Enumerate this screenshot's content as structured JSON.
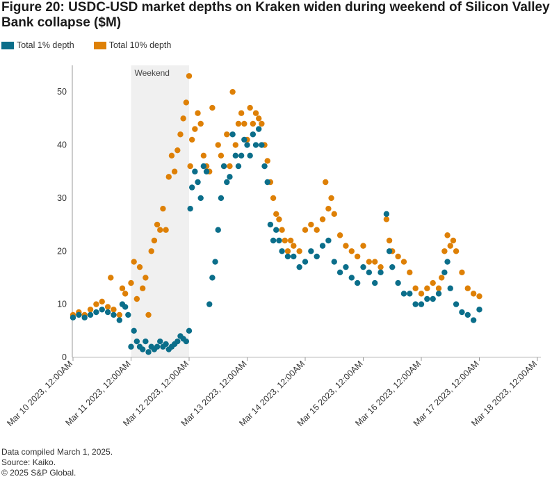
{
  "colors": {
    "series_1pct": "#0b6e8a",
    "series_10pct": "#de8006",
    "band": "#f0f0f0"
  },
  "chart_data": {
    "type": "scatter",
    "title": "Figure 20: USDC-USD market depths on Kraken widen during weekend of Silicon Valley Bank collapse ($M)",
    "xlabel": "",
    "ylabel": "",
    "ylim": [
      0,
      55
    ],
    "yticks": [
      0,
      10,
      20,
      30,
      40,
      50
    ],
    "xticks": [
      "Mar 10 2023, 12:00AM",
      "Mar 11 2023, 12:00AM",
      "Mar 12 2023, 12:00AM",
      "Mar 13 2023, 12:00AM",
      "Mar 14 2023, 12:00AM",
      "Mar 15 2023, 12:00AM",
      "Mar 16 2023, 12:00AM",
      "Mar 17 2023, 12:00AM",
      "Mar 18 2023, 12:00AM"
    ],
    "x_units": "days since Mar 10 2023, 12:00AM",
    "xlim": [
      -0.1,
      8.0
    ],
    "shaded_region": {
      "label": "Weekend",
      "x_start": 1.0,
      "x_end": 2.0
    },
    "legend": [
      "Total 1% depth",
      "Total 10% depth"
    ],
    "legend_position": "top-left",
    "series": [
      {
        "name": "Total 10% depth",
        "points": [
          [
            0.0,
            8
          ],
          [
            0.1,
            8.5
          ],
          [
            0.2,
            8
          ],
          [
            0.3,
            9
          ],
          [
            0.4,
            10
          ],
          [
            0.5,
            10.5
          ],
          [
            0.6,
            9.5
          ],
          [
            0.65,
            15
          ],
          [
            0.7,
            9
          ],
          [
            0.8,
            8
          ],
          [
            0.85,
            13
          ],
          [
            0.9,
            12
          ],
          [
            1.0,
            14
          ],
          [
            1.05,
            18
          ],
          [
            1.1,
            11
          ],
          [
            1.15,
            17
          ],
          [
            1.2,
            13
          ],
          [
            1.25,
            15
          ],
          [
            1.3,
            8
          ],
          [
            1.35,
            20
          ],
          [
            1.4,
            22
          ],
          [
            1.45,
            25
          ],
          [
            1.5,
            24
          ],
          [
            1.55,
            28
          ],
          [
            1.6,
            24
          ],
          [
            1.65,
            34
          ],
          [
            1.7,
            38
          ],
          [
            1.75,
            35
          ],
          [
            1.8,
            39
          ],
          [
            1.85,
            42
          ],
          [
            1.9,
            45
          ],
          [
            1.95,
            48
          ],
          [
            2.0,
            53
          ],
          [
            2.02,
            36
          ],
          [
            2.05,
            41
          ],
          [
            2.1,
            43
          ],
          [
            2.15,
            46
          ],
          [
            2.2,
            44
          ],
          [
            2.25,
            38
          ],
          [
            2.3,
            36
          ],
          [
            2.35,
            35
          ],
          [
            2.4,
            47
          ],
          [
            2.5,
            40
          ],
          [
            2.55,
            38
          ],
          [
            2.6,
            36
          ],
          [
            2.65,
            42
          ],
          [
            2.7,
            36
          ],
          [
            2.75,
            50
          ],
          [
            2.8,
            40
          ],
          [
            2.85,
            44
          ],
          [
            2.9,
            46
          ],
          [
            2.95,
            44
          ],
          [
            3.0,
            41
          ],
          [
            3.05,
            47
          ],
          [
            3.1,
            44
          ],
          [
            3.15,
            46
          ],
          [
            3.2,
            45
          ],
          [
            3.25,
            44
          ],
          [
            3.3,
            40
          ],
          [
            3.35,
            37
          ],
          [
            3.4,
            33
          ],
          [
            3.45,
            30
          ],
          [
            3.5,
            27
          ],
          [
            3.55,
            26
          ],
          [
            3.6,
            24
          ],
          [
            3.65,
            22
          ],
          [
            3.7,
            20
          ],
          [
            3.75,
            22
          ],
          [
            3.8,
            21
          ],
          [
            3.9,
            20
          ],
          [
            4.0,
            24
          ],
          [
            4.1,
            25
          ],
          [
            4.2,
            24
          ],
          [
            4.3,
            26
          ],
          [
            4.35,
            33
          ],
          [
            4.4,
            28
          ],
          [
            4.45,
            30
          ],
          [
            4.5,
            27
          ],
          [
            4.6,
            23
          ],
          [
            4.7,
            21
          ],
          [
            4.8,
            20
          ],
          [
            4.9,
            19
          ],
          [
            5.0,
            21
          ],
          [
            5.1,
            18
          ],
          [
            5.2,
            18
          ],
          [
            5.3,
            17
          ],
          [
            5.4,
            26
          ],
          [
            5.45,
            22
          ],
          [
            5.5,
            20
          ],
          [
            5.6,
            19
          ],
          [
            5.7,
            18
          ],
          [
            5.8,
            16
          ],
          [
            5.9,
            13
          ],
          [
            6.0,
            12
          ],
          [
            6.1,
            13
          ],
          [
            6.2,
            14
          ],
          [
            6.3,
            13
          ],
          [
            6.35,
            15
          ],
          [
            6.4,
            20
          ],
          [
            6.45,
            23
          ],
          [
            6.5,
            21
          ],
          [
            6.55,
            22
          ],
          [
            6.6,
            20
          ],
          [
            6.7,
            16
          ],
          [
            6.8,
            13
          ],
          [
            6.9,
            12
          ],
          [
            7.0,
            11.5
          ]
        ]
      },
      {
        "name": "Total 1% depth",
        "points": [
          [
            0.0,
            7.5
          ],
          [
            0.1,
            8
          ],
          [
            0.2,
            7.5
          ],
          [
            0.3,
            8
          ],
          [
            0.4,
            8.5
          ],
          [
            0.5,
            9
          ],
          [
            0.6,
            8.5
          ],
          [
            0.7,
            8
          ],
          [
            0.8,
            7
          ],
          [
            0.85,
            10
          ],
          [
            0.9,
            9.5
          ],
          [
            0.95,
            8
          ],
          [
            1.0,
            2
          ],
          [
            1.05,
            5
          ],
          [
            1.1,
            3
          ],
          [
            1.15,
            2
          ],
          [
            1.2,
            1.5
          ],
          [
            1.25,
            3
          ],
          [
            1.3,
            1
          ],
          [
            1.35,
            2
          ],
          [
            1.4,
            1.5
          ],
          [
            1.45,
            2
          ],
          [
            1.5,
            3
          ],
          [
            1.55,
            2
          ],
          [
            1.6,
            2.5
          ],
          [
            1.65,
            1.5
          ],
          [
            1.7,
            2
          ],
          [
            1.75,
            2.5
          ],
          [
            1.8,
            3
          ],
          [
            1.85,
            4
          ],
          [
            1.9,
            3.5
          ],
          [
            1.95,
            3
          ],
          [
            2.0,
            5
          ],
          [
            2.02,
            28
          ],
          [
            2.05,
            32
          ],
          [
            2.1,
            35
          ],
          [
            2.15,
            33
          ],
          [
            2.2,
            30
          ],
          [
            2.25,
            36
          ],
          [
            2.3,
            35
          ],
          [
            2.35,
            10
          ],
          [
            2.4,
            15
          ],
          [
            2.45,
            18
          ],
          [
            2.5,
            24
          ],
          [
            2.55,
            30
          ],
          [
            2.6,
            36
          ],
          [
            2.65,
            33
          ],
          [
            2.7,
            34
          ],
          [
            2.75,
            42
          ],
          [
            2.8,
            38
          ],
          [
            2.85,
            36
          ],
          [
            2.9,
            38
          ],
          [
            2.95,
            41
          ],
          [
            3.0,
            40
          ],
          [
            3.05,
            38
          ],
          [
            3.1,
            42
          ],
          [
            3.15,
            40
          ],
          [
            3.2,
            43
          ],
          [
            3.25,
            40
          ],
          [
            3.3,
            36
          ],
          [
            3.35,
            33
          ],
          [
            3.4,
            25
          ],
          [
            3.45,
            22
          ],
          [
            3.5,
            24
          ],
          [
            3.55,
            22
          ],
          [
            3.6,
            20
          ],
          [
            3.7,
            19
          ],
          [
            3.8,
            19
          ],
          [
            3.9,
            17
          ],
          [
            4.0,
            18
          ],
          [
            4.1,
            20
          ],
          [
            4.2,
            19
          ],
          [
            4.3,
            21
          ],
          [
            4.4,
            22
          ],
          [
            4.5,
            18
          ],
          [
            4.6,
            16
          ],
          [
            4.7,
            17
          ],
          [
            4.8,
            15
          ],
          [
            4.9,
            14
          ],
          [
            5.0,
            17
          ],
          [
            5.1,
            16
          ],
          [
            5.2,
            14
          ],
          [
            5.3,
            16
          ],
          [
            5.4,
            27
          ],
          [
            5.45,
            20
          ],
          [
            5.5,
            17
          ],
          [
            5.6,
            14
          ],
          [
            5.7,
            12
          ],
          [
            5.8,
            12
          ],
          [
            5.9,
            10
          ],
          [
            6.0,
            10
          ],
          [
            6.1,
            11
          ],
          [
            6.2,
            11
          ],
          [
            6.3,
            12
          ],
          [
            6.4,
            16
          ],
          [
            6.45,
            18
          ],
          [
            6.5,
            13
          ],
          [
            6.6,
            10
          ],
          [
            6.7,
            8.5
          ],
          [
            6.8,
            8
          ],
          [
            6.9,
            7
          ],
          [
            7.0,
            9
          ]
        ]
      }
    ]
  },
  "footer": {
    "compiled": "Data compiled March 1, 2025.",
    "source": "Source: Kaiko.",
    "copyright": "© 2025 S&P Global."
  }
}
